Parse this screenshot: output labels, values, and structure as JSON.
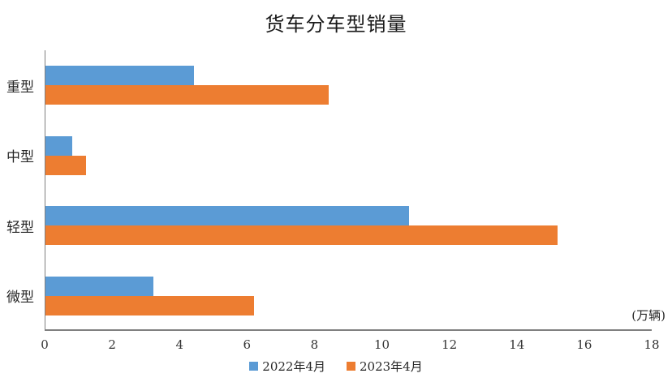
{
  "chart_data": {
    "type": "bar",
    "orientation": "horizontal",
    "title": "货车分车型销量",
    "categories": [
      "重型",
      "中型",
      "轻型",
      "微型"
    ],
    "series": [
      {
        "name": "2022年4月",
        "color": "#5B9BD5",
        "values": [
          4.4,
          0.8,
          10.8,
          3.2
        ]
      },
      {
        "name": "2023年4月",
        "color": "#ED7D31",
        "values": [
          8.4,
          1.2,
          15.2,
          6.2
        ]
      }
    ],
    "xlabel_unit": "(万辆)",
    "xlim": [
      0,
      18
    ],
    "xticks": [
      0,
      2,
      4,
      6,
      8,
      10,
      12,
      14,
      16,
      18
    ],
    "grid": false,
    "legend_position": "bottom",
    "axis_color": "#808080",
    "text_color": "#262626"
  }
}
